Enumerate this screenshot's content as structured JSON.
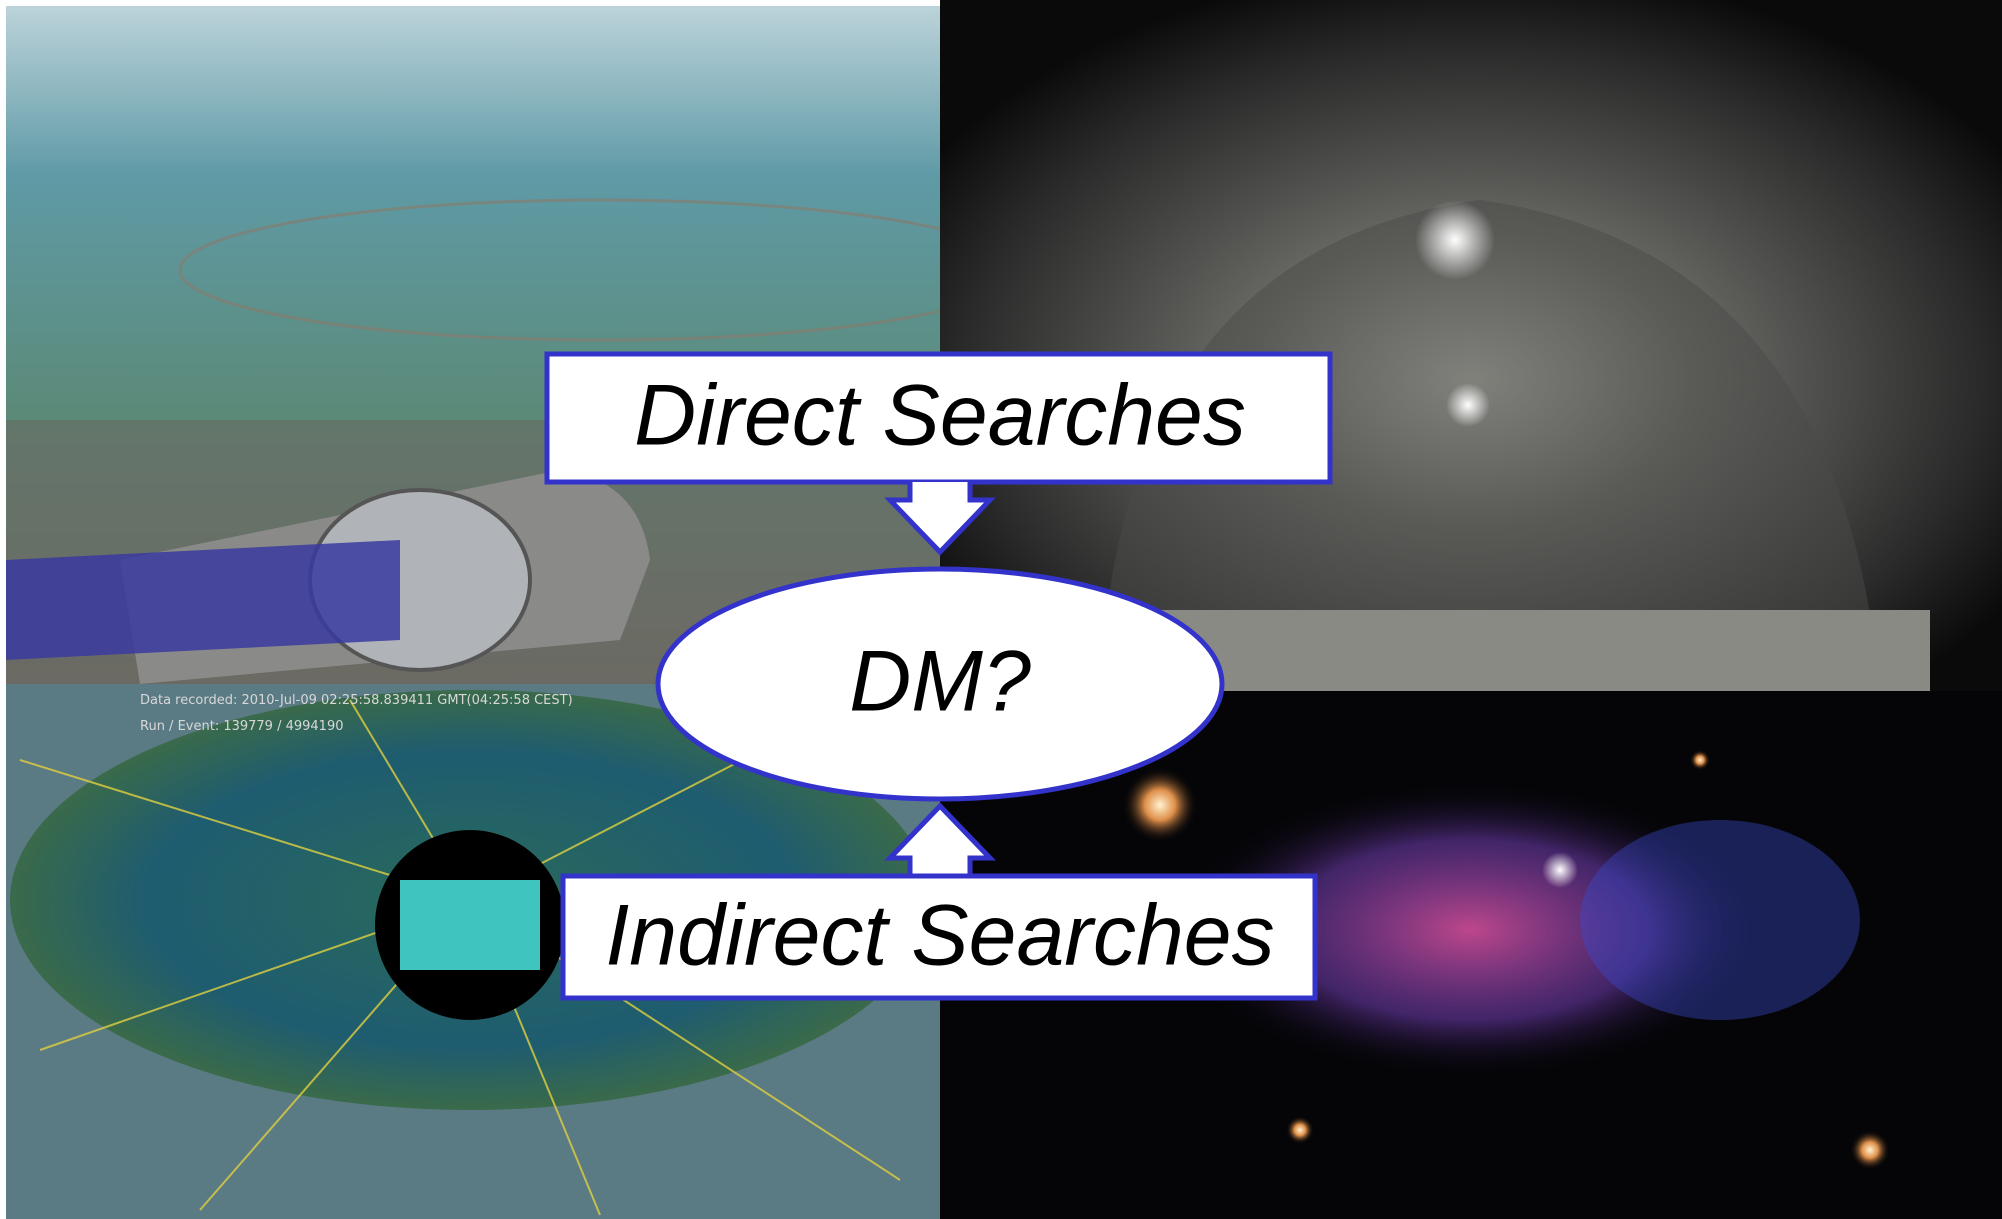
{
  "diagram": {
    "top_box": "Direct Searches",
    "center": "DM?",
    "bottom_box": "Indirect Searches"
  },
  "event_display": {
    "recorded": "Data recorded: 2010-Jul-09 02:25:58.839411 GMT(04:25:58 CEST)",
    "run": "Run / Event: 139779 / 4994190"
  }
}
